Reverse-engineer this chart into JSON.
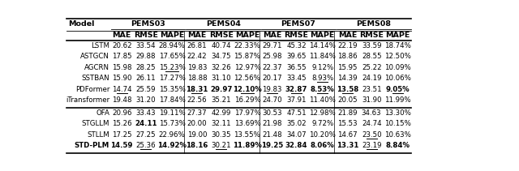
{
  "group1": [
    [
      "LSTM",
      "20.62",
      "33.54",
      "28.94%",
      "26.81",
      "40.74",
      "22.33%",
      "29.71",
      "45.32",
      "14.14%",
      "22.19",
      "33.59",
      "18.74%"
    ],
    [
      "ASTGCN",
      "17.85",
      "29.88",
      "17.65%",
      "22.42",
      "34.75",
      "15.87%",
      "25.98",
      "39.65",
      "11.84%",
      "18.86",
      "28.55",
      "12.50%"
    ],
    [
      "AGCRN",
      "15.98",
      "28.25",
      "15.23%",
      "19.83",
      "32.26",
      "12.97%",
      "22.37",
      "36.55",
      "9.12%",
      "15.95",
      "25.22",
      "10.09%"
    ],
    [
      "SSTBAN",
      "15.90",
      "26.11",
      "17.27%",
      "18.88",
      "31.10",
      "12.56%",
      "20.17",
      "33.45",
      "8.93%",
      "14.39",
      "24.19",
      "10.06%"
    ],
    [
      "PDFormer",
      "14.74",
      "25.59",
      "15.35%",
      "18.31",
      "29.97",
      "12.10%",
      "19.83",
      "32.87",
      "8.53%",
      "13.58",
      "23.51",
      "9.05%"
    ],
    [
      "iTransformer",
      "19.48",
      "31.20",
      "17.84%",
      "22.56",
      "35.21",
      "16.29%",
      "24.70",
      "37.91",
      "11.40%",
      "20.05",
      "31.90",
      "11.99%"
    ]
  ],
  "group2": [
    [
      "OFA",
      "20.96",
      "33.43",
      "19.11%",
      "27.37",
      "42.99",
      "17.97%",
      "30.53",
      "47.51",
      "12.98%",
      "21.89",
      "34.63",
      "13.30%"
    ],
    [
      "STGLLM",
      "15.26",
      "24.11",
      "15.73%",
      "20.00",
      "32.11",
      "13.69%",
      "21.98",
      "35.02",
      "9.72%",
      "15.53",
      "24.74",
      "10.15%"
    ],
    [
      "STLLM",
      "17.25",
      "27.25",
      "22.96%",
      "19.00",
      "30.35",
      "13.55%",
      "21.48",
      "34.07",
      "10.20%",
      "14.67",
      "23.50",
      "10.63%"
    ],
    [
      "STD-PLM",
      "14.59",
      "25.36",
      "14.92%",
      "18.16",
      "30.21",
      "11.89%",
      "19.25",
      "32.84",
      "8.06%",
      "13.31",
      "23.19",
      "8.84%"
    ]
  ],
  "bold_cells": [
    "STGLLM_RMSE_PEMS03",
    "PDFormer_MAE_PEMS04",
    "PDFormer_RMSE_PEMS04",
    "PDFormer_MAPE_PEMS04",
    "PDFormer_RMSE_PEMS07",
    "PDFormer_MAPE_PEMS07",
    "PDFormer_MAE_PEMS08",
    "PDFormer_MAPE_PEMS08",
    "STD-PLM_MAE_PEMS03",
    "STD-PLM_MAPE_PEMS03",
    "STD-PLM_MAE_PEMS04",
    "STD-PLM_MAPE_PEMS04",
    "STD-PLM_MAE_PEMS07",
    "STD-PLM_RMSE_PEMS07",
    "STD-PLM_MAPE_PEMS07",
    "STD-PLM_MAE_PEMS08",
    "STD-PLM_MAPE_PEMS08"
  ],
  "underline_cells": [
    "AGCRN_MAPE_PEMS03",
    "PDFormer_MAE_PEMS03",
    "PDFormer_MAE_PEMS04",
    "PDFormer_MAPE_PEMS04",
    "PDFormer_MAE_PEMS07",
    "PDFormer_RMSE_PEMS07",
    "PDFormer_MAPE_PEMS07",
    "PDFormer_MAE_PEMS08",
    "PDFormer_MAPE_PEMS08",
    "SSTBAN_MAPE_PEMS07",
    "STLLM_RMSE_PEMS08",
    "STD-PLM_RMSE_PEMS03",
    "STD-PLM_RMSE_PEMS04",
    "STD-PLM_RMSE_PEMS08"
  ],
  "datasets": [
    "PEMS03",
    "PEMS04",
    "PEMS07",
    "PEMS08"
  ],
  "metrics": [
    "MAE",
    "RMSE",
    "MAPE"
  ],
  "font_size": 6.2,
  "header_font_size": 6.8
}
